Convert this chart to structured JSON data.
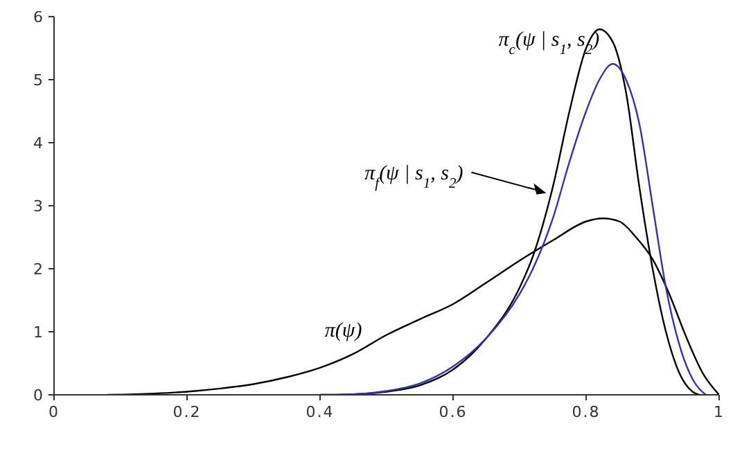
{
  "chart_data": {
    "type": "line",
    "xlim": [
      0,
      1
    ],
    "ylim": [
      0,
      6
    ],
    "xticks": [
      0,
      0.2,
      0.4,
      0.6,
      0.8,
      1
    ],
    "yticks": [
      0,
      1,
      2,
      3,
      4,
      5,
      6
    ],
    "grid": false,
    "legend": false,
    "marker": "none",
    "line_style": "solid",
    "series": [
      {
        "color": "#000000",
        "x": [
          0.08,
          0.15,
          0.2,
          0.25,
          0.3,
          0.35,
          0.4,
          0.45,
          0.5,
          0.55,
          0.6,
          0.65,
          0.7,
          0.75,
          0.8,
          0.825,
          0.85,
          0.875,
          0.9,
          0.925,
          0.95,
          0.975,
          1
        ],
        "values": [
          0,
          0.02,
          0.05,
          0.1,
          0.17,
          0.28,
          0.43,
          0.65,
          0.95,
          1.2,
          1.44,
          1.78,
          2.13,
          2.45,
          2.75,
          2.8,
          2.75,
          2.5,
          2.15,
          1.6,
          0.93,
          0.35,
          0
        ]
      },
      {
        "color": "#000000",
        "x": [
          0.4,
          0.45,
          0.5,
          0.55,
          0.6,
          0.65,
          0.7,
          0.72,
          0.75,
          0.775,
          0.8,
          0.82,
          0.84,
          0.86,
          0.88,
          0.9,
          0.92,
          0.94,
          0.96,
          0.97
        ],
        "values": [
          0,
          0.01,
          0.05,
          0.15,
          0.4,
          0.9,
          1.7,
          2.2,
          3.3,
          4.5,
          5.5,
          5.8,
          5.6,
          4.8,
          3.3,
          2.0,
          1.0,
          0.35,
          0.05,
          0
        ]
      },
      {
        "color": "#3333aa",
        "x": [
          0.4,
          0.45,
          0.5,
          0.55,
          0.6,
          0.65,
          0.7,
          0.72,
          0.75,
          0.775,
          0.8,
          0.82,
          0.84,
          0.86,
          0.88,
          0.9,
          0.92,
          0.94,
          0.96,
          0.98
        ],
        "values": [
          0,
          0.01,
          0.06,
          0.18,
          0.45,
          0.9,
          1.6,
          2.0,
          2.8,
          3.7,
          4.5,
          5.0,
          5.25,
          5.0,
          4.3,
          3.0,
          1.7,
          0.8,
          0.25,
          0
        ]
      }
    ],
    "annotations": [
      {
        "text": "π$_{c}$(ψ | s$_{1}$, s$_{2}$)",
        "x": 0.82,
        "y": 5.8
      },
      {
        "text": "π$_{f}$(ψ | s$_{1}$, s$_{2}$)",
        "x": 0.74,
        "y": 3.2
      },
      {
        "text": "π(ψ)",
        "x": 0.46,
        "y": 0.75
      }
    ]
  }
}
